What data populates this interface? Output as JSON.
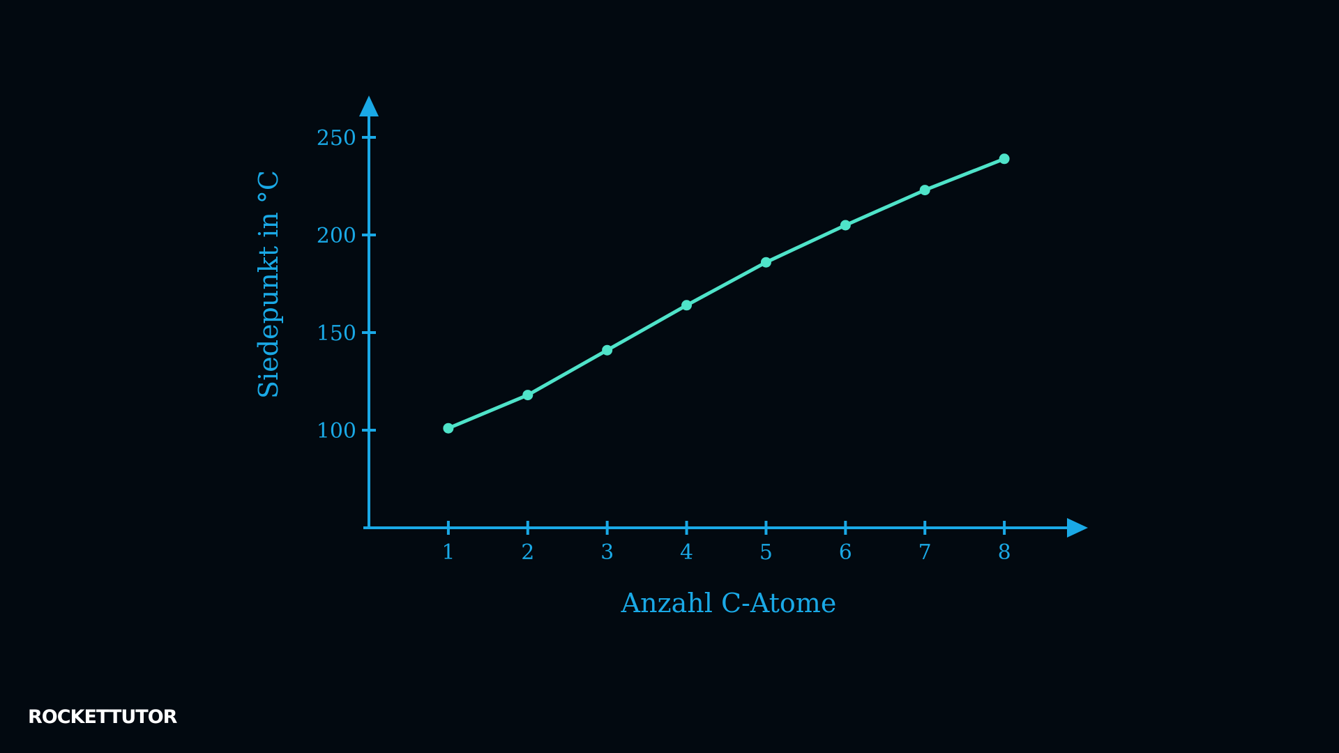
{
  "chart_data": {
    "type": "line",
    "x": [
      1,
      2,
      3,
      4,
      5,
      6,
      7,
      8
    ],
    "series": [
      {
        "color": "#4fe3c9",
        "values": [
          101,
          118,
          141,
          164,
          186,
          205,
          223,
          239
        ]
      }
    ],
    "xlim": [
      0,
      9
    ],
    "ylim": [
      50,
      270
    ],
    "xticks": [
      1,
      2,
      3,
      4,
      5,
      6,
      7,
      8
    ],
    "yticks": [
      100,
      150,
      200,
      250
    ],
    "xlabel": "Anzahl C-Atome",
    "ylabel": "Siedepunkt in °C",
    "axis_color": "#1aa9e6",
    "grid": false
  },
  "logo": "ROCKETTUTOR"
}
